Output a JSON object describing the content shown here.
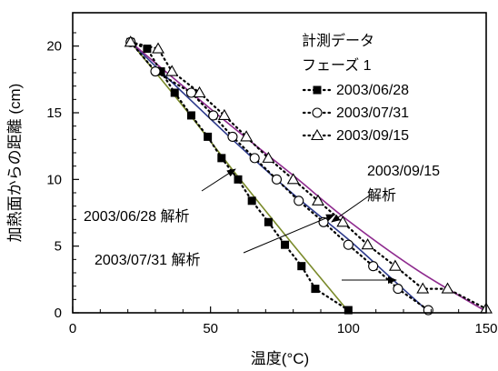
{
  "chart_data": {
    "type": "scatter",
    "title": "",
    "xlabel": "温度(°C)",
    "ylabel": "加熱面からの距離 (cm)",
    "xlim": [
      0,
      150
    ],
    "ylim": [
      0,
      22.5
    ],
    "xticks": [
      0,
      50,
      100,
      150
    ],
    "yticks": [
      0,
      5,
      10,
      15,
      20
    ],
    "grid": false,
    "legend": {
      "position": "top-right",
      "title_lines": [
        "計測データ",
        "フェーズ 1"
      ]
    },
    "series": [
      {
        "name": "2003/06/28",
        "marker": "square-filled",
        "line": "dotted",
        "points": [
          [
            21,
            20.3
          ],
          [
            27,
            19.8
          ],
          [
            32,
            18.1
          ],
          [
            37,
            16.5
          ],
          [
            43,
            14.8
          ],
          [
            49,
            13.2
          ],
          [
            54,
            11.6
          ],
          [
            60,
            10.0
          ],
          [
            65,
            8.4
          ],
          [
            71,
            6.8
          ],
          [
            77,
            5.1
          ],
          [
            83,
            3.5
          ],
          [
            88,
            1.8
          ],
          [
            100,
            0.2
          ]
        ]
      },
      {
        "name": "2003/07/31",
        "marker": "circle-open",
        "line": "dotted",
        "points": [
          [
            21,
            20.3
          ],
          [
            30,
            18.1
          ],
          [
            43,
            16.5
          ],
          [
            51,
            14.8
          ],
          [
            58,
            13.2
          ],
          [
            66,
            11.6
          ],
          [
            74,
            10.0
          ],
          [
            82,
            8.4
          ],
          [
            91,
            6.8
          ],
          [
            100,
            5.1
          ],
          [
            109,
            3.5
          ],
          [
            118,
            1.8
          ],
          [
            129,
            0.2
          ]
        ]
      },
      {
        "name": "2003/09/15",
        "marker": "triangle-open",
        "line": "dotted",
        "points": [
          [
            21,
            20.3
          ],
          [
            31,
            19.8
          ],
          [
            36,
            18.1
          ],
          [
            46,
            16.5
          ],
          [
            55,
            14.8
          ],
          [
            63,
            13.2
          ],
          [
            71,
            11.6
          ],
          [
            80,
            10.0
          ],
          [
            89,
            8.4
          ],
          [
            98,
            6.8
          ],
          [
            107,
            5.1
          ],
          [
            117,
            3.5
          ],
          [
            127,
            1.8
          ],
          [
            136,
            1.8
          ],
          [
            150,
            0.3
          ]
        ]
      }
    ],
    "analysis_curves": [
      {
        "label": "2003/06/28 解析",
        "color": "#7a8a2a",
        "points": [
          [
            21,
            20.3
          ],
          [
            40,
            15.5
          ],
          [
            60,
            10.2
          ],
          [
            80,
            5.1
          ],
          [
            100,
            0.1
          ]
        ]
      },
      {
        "label": "2003/07/31 解析",
        "color": "#2d3a8c",
        "points": [
          [
            21,
            20.3
          ],
          [
            40,
            16.5
          ],
          [
            60,
            12.6
          ],
          [
            80,
            8.9
          ],
          [
            100,
            5.5
          ],
          [
            115,
            2.7
          ],
          [
            129,
            0.1
          ]
        ]
      },
      {
        "label": "2003/09/15 解析",
        "color": "#8e2a8e",
        "points": [
          [
            21,
            20.3
          ],
          [
            40,
            17.0
          ],
          [
            60,
            13.6
          ],
          [
            80,
            10.3
          ],
          [
            100,
            6.9
          ],
          [
            125,
            3.2
          ],
          [
            150,
            0.1
          ]
        ]
      }
    ],
    "annotations": [
      {
        "text": "2003/06/28 解析",
        "target": "2003/06/28 解析"
      },
      {
        "text": "2003/07/31 解析",
        "target": "2003/07/31 解析"
      },
      {
        "text_lines": [
          "2003/09/15",
          "解析"
        ],
        "target": "2003/09/15 解析"
      }
    ]
  }
}
